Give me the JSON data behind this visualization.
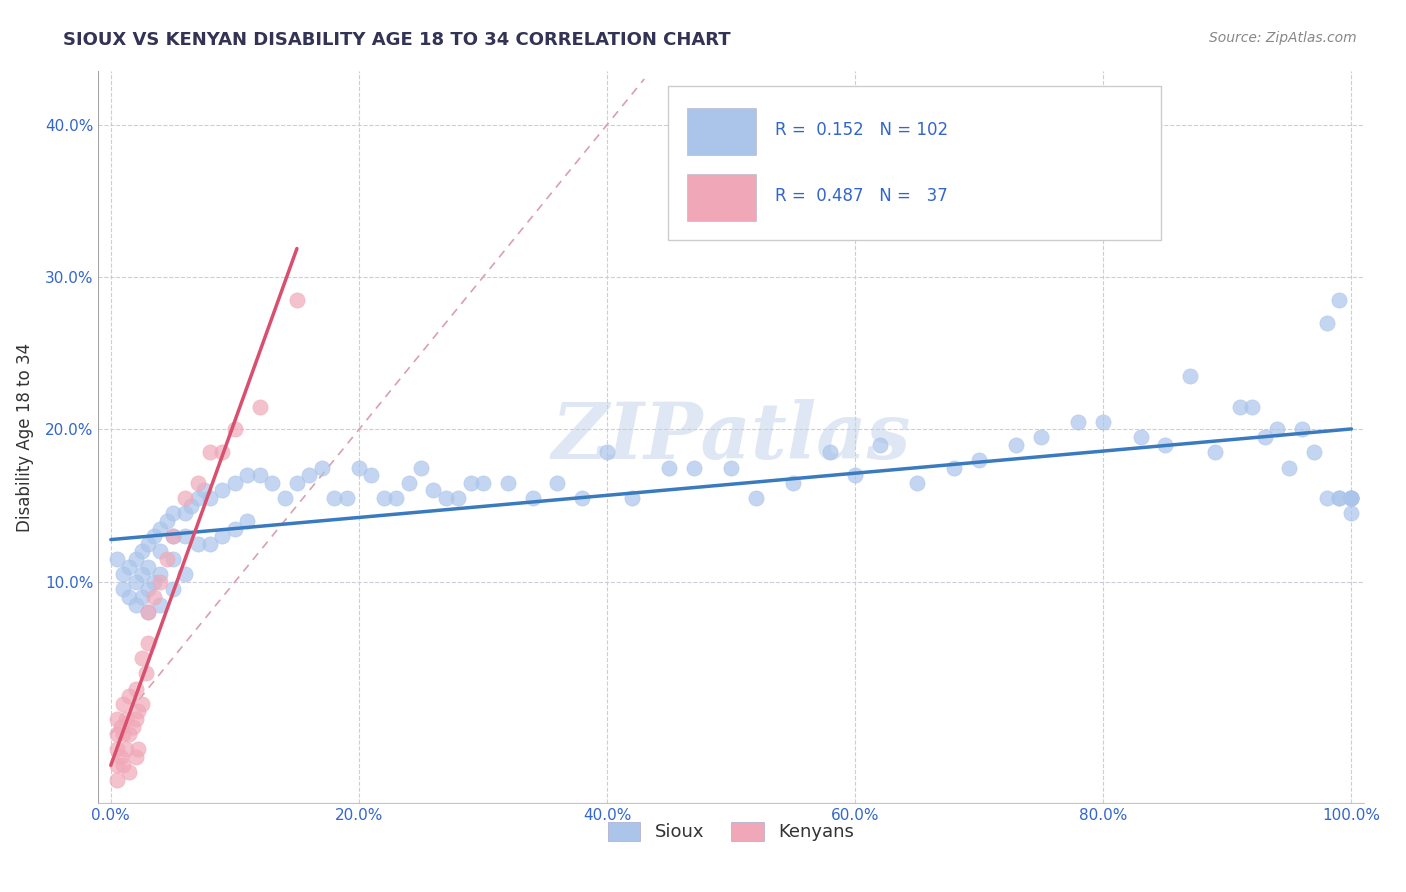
{
  "title": "SIOUX VS KENYAN DISABILITY AGE 18 TO 34 CORRELATION CHART",
  "source": "Source: ZipAtlas.com",
  "ylabel": "Disability Age 18 to 34",
  "xlim": [
    -0.01,
    1.01
  ],
  "ylim": [
    -0.045,
    0.435
  ],
  "x_tick_labels": [
    "0.0%",
    "20.0%",
    "40.0%",
    "60.0%",
    "80.0%",
    "100.0%"
  ],
  "x_tick_vals": [
    0.0,
    0.2,
    0.4,
    0.6,
    0.8,
    1.0
  ],
  "y_tick_labels": [
    "10.0%",
    "20.0%",
    "30.0%",
    "40.0%"
  ],
  "y_tick_vals": [
    0.1,
    0.2,
    0.3,
    0.4
  ],
  "legend_label1": "Sioux",
  "legend_label2": "Kenyans",
  "r1": "0.152",
  "n1": "102",
  "r2": "0.487",
  "n2": "37",
  "sioux_color": "#aac4ea",
  "kenyan_color": "#f0a8b8",
  "trend1_color": "#3a7abf",
  "trend2_color": "#d94f6e",
  "diag_color": "#d8a0b0",
  "watermark_color": "#c8d8ec",
  "sioux_x": [
    0.005,
    0.01,
    0.01,
    0.015,
    0.015,
    0.02,
    0.02,
    0.02,
    0.025,
    0.025,
    0.025,
    0.03,
    0.03,
    0.03,
    0.03,
    0.035,
    0.035,
    0.04,
    0.04,
    0.04,
    0.04,
    0.045,
    0.05,
    0.05,
    0.05,
    0.05,
    0.06,
    0.06,
    0.06,
    0.065,
    0.07,
    0.07,
    0.075,
    0.08,
    0.08,
    0.09,
    0.09,
    0.1,
    0.1,
    0.11,
    0.11,
    0.12,
    0.13,
    0.14,
    0.15,
    0.16,
    0.17,
    0.18,
    0.19,
    0.2,
    0.21,
    0.22,
    0.23,
    0.24,
    0.25,
    0.26,
    0.27,
    0.28,
    0.29,
    0.3,
    0.32,
    0.34,
    0.36,
    0.38,
    0.4,
    0.42,
    0.45,
    0.47,
    0.5,
    0.52,
    0.55,
    0.58,
    0.6,
    0.62,
    0.65,
    0.68,
    0.7,
    0.73,
    0.75,
    0.78,
    0.8,
    0.83,
    0.85,
    0.87,
    0.89,
    0.91,
    0.92,
    0.93,
    0.94,
    0.95,
    0.96,
    0.97,
    0.98,
    0.98,
    0.99,
    0.99,
    0.99,
    1.0,
    1.0,
    1.0,
    1.0,
    1.0
  ],
  "sioux_y": [
    0.115,
    0.105,
    0.095,
    0.11,
    0.09,
    0.115,
    0.1,
    0.085,
    0.12,
    0.105,
    0.09,
    0.125,
    0.11,
    0.095,
    0.08,
    0.13,
    0.1,
    0.135,
    0.12,
    0.105,
    0.085,
    0.14,
    0.145,
    0.13,
    0.115,
    0.095,
    0.145,
    0.13,
    0.105,
    0.15,
    0.155,
    0.125,
    0.16,
    0.155,
    0.125,
    0.16,
    0.13,
    0.165,
    0.135,
    0.17,
    0.14,
    0.17,
    0.165,
    0.155,
    0.165,
    0.17,
    0.175,
    0.155,
    0.155,
    0.175,
    0.17,
    0.155,
    0.155,
    0.165,
    0.175,
    0.16,
    0.155,
    0.155,
    0.165,
    0.165,
    0.165,
    0.155,
    0.165,
    0.155,
    0.185,
    0.155,
    0.175,
    0.175,
    0.175,
    0.155,
    0.165,
    0.185,
    0.17,
    0.19,
    0.165,
    0.175,
    0.18,
    0.19,
    0.195,
    0.205,
    0.205,
    0.195,
    0.19,
    0.235,
    0.185,
    0.215,
    0.215,
    0.195,
    0.2,
    0.175,
    0.2,
    0.185,
    0.155,
    0.27,
    0.285,
    0.155,
    0.155,
    0.155,
    0.145,
    0.155,
    0.155,
    0.155
  ],
  "kenyan_x": [
    0.005,
    0.005,
    0.005,
    0.005,
    0.005,
    0.008,
    0.008,
    0.01,
    0.01,
    0.01,
    0.012,
    0.012,
    0.015,
    0.015,
    0.015,
    0.018,
    0.02,
    0.02,
    0.02,
    0.022,
    0.022,
    0.025,
    0.025,
    0.028,
    0.03,
    0.03,
    0.035,
    0.04,
    0.045,
    0.05,
    0.06,
    0.07,
    0.08,
    0.09,
    0.1,
    0.12,
    0.15
  ],
  "kenyan_y": [
    -0.01,
    -0.02,
    -0.03,
    0.0,
    0.01,
    -0.015,
    0.005,
    -0.02,
    0.0,
    0.02,
    -0.01,
    0.01,
    -0.025,
    0.0,
    0.025,
    0.005,
    -0.015,
    0.01,
    0.03,
    -0.01,
    0.015,
    0.02,
    0.05,
    0.04,
    0.06,
    0.08,
    0.09,
    0.1,
    0.115,
    0.13,
    0.155,
    0.165,
    0.185,
    0.185,
    0.2,
    0.215,
    0.285
  ]
}
